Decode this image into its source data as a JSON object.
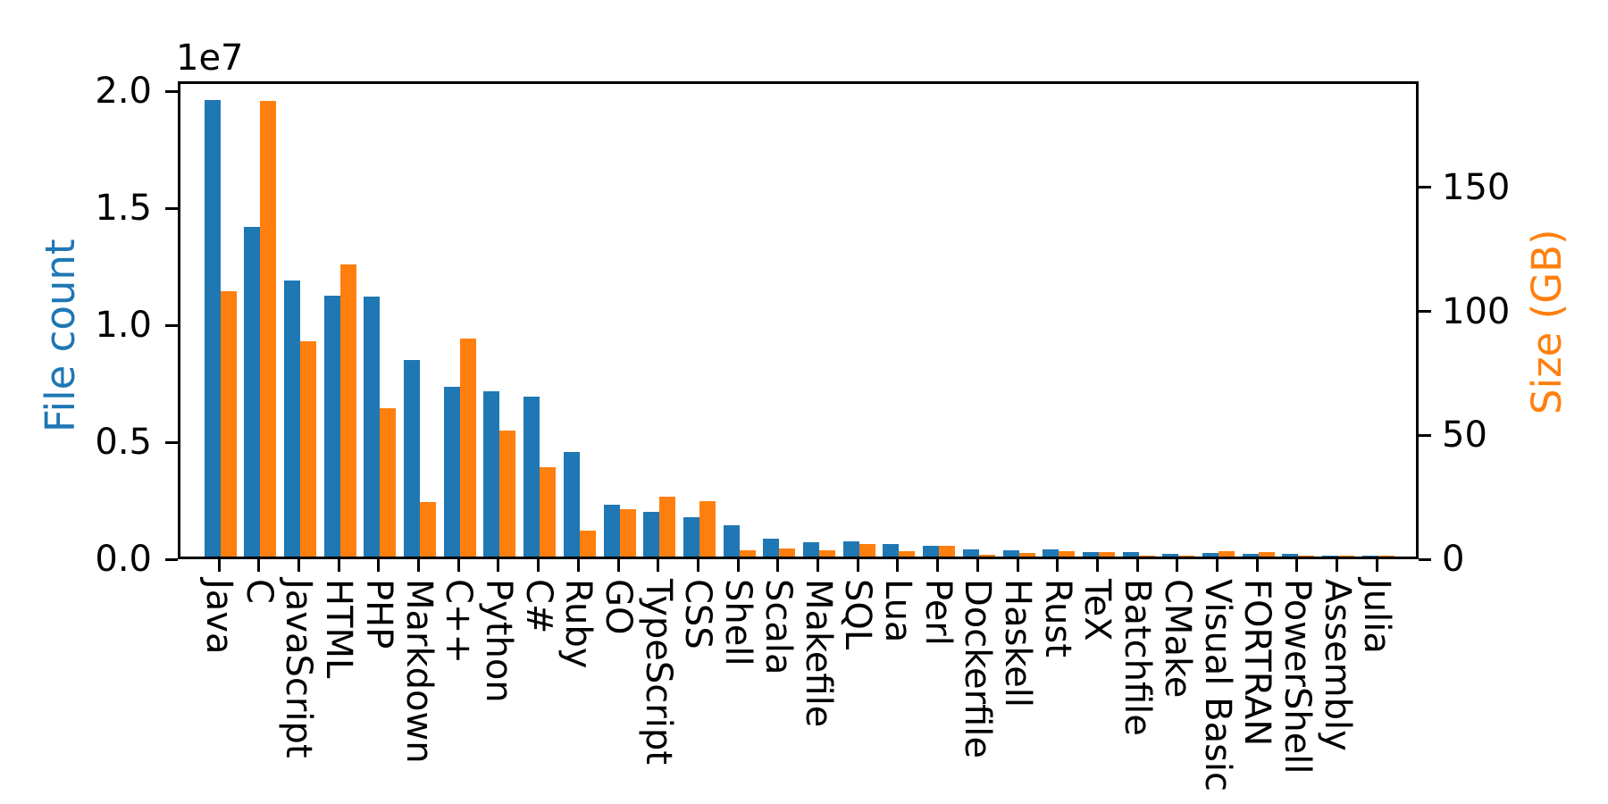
{
  "chart_data": {
    "type": "bar",
    "title": "",
    "grid": false,
    "legend": "none",
    "categories": [
      "Java",
      "C",
      "JavaScript",
      "HTML",
      "PHP",
      "Markdown",
      "C++",
      "Python",
      "C#",
      "Ruby",
      "GO",
      "TypeScript",
      "CSS",
      "Shell",
      "Scala",
      "Makefile",
      "SQL",
      "Lua",
      "Perl",
      "Dockerfile",
      "Haskell",
      "Rust",
      "TeX",
      "Batchfile",
      "CMake",
      "Visual Basic",
      "FORTRAN",
      "PowerShell",
      "Assembly",
      "Julia"
    ],
    "series": [
      {
        "name": "File count",
        "axis": "left",
        "color": "#1f77b4",
        "values": [
          19500000,
          14100000,
          11800000,
          11150000,
          11120000,
          8400000,
          7250000,
          7070000,
          6820000,
          4450000,
          2230000,
          1900000,
          1680000,
          1340000,
          780000,
          610000,
          640000,
          550000,
          450000,
          320000,
          280000,
          290000,
          180000,
          200000,
          130000,
          160000,
          100000,
          100000,
          50000,
          30000
        ]
      },
      {
        "name": "Size (GB)",
        "axis": "right",
        "color": "#ff7f0e",
        "values": [
          107,
          184,
          87,
          118,
          60,
          22,
          88,
          51,
          36,
          10.5,
          19,
          24,
          22.5,
          2.5,
          3.4,
          2.5,
          5,
          2,
          4.2,
          0.6,
          1.5,
          2,
          1.8,
          0.4,
          0.35,
          2,
          1.8,
          0.5,
          0.5,
          0.3
        ]
      }
    ],
    "left_axis": {
      "label": "File count",
      "color": "#1f77b4",
      "offset_text": "1e7",
      "tick_labels": [
        "0.0",
        "0.5",
        "1.0",
        "1.5",
        "2.0"
      ],
      "tick_values": [
        0,
        5000000,
        10000000,
        15000000,
        20000000
      ],
      "range": [
        0,
        20420000
      ]
    },
    "right_axis": {
      "label": "Size (GB)",
      "color": "#ff7f0e",
      "tick_labels": [
        "0",
        "50",
        "100",
        "150"
      ],
      "tick_values": [
        0,
        50,
        100,
        150
      ],
      "range": [
        0,
        192.9
      ]
    },
    "axis_color": "#000000",
    "background_color": "#ffffff"
  }
}
